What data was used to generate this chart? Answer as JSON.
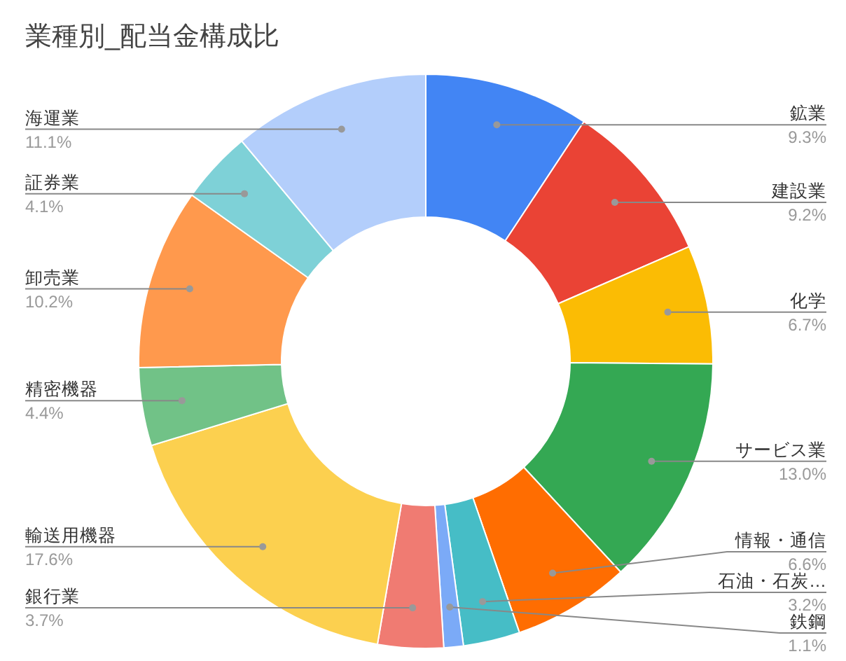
{
  "chart_data": {
    "type": "donut",
    "title": "業種別_配当金構成比",
    "categories": [
      "鉱業",
      "建設業",
      "化学",
      "サービス業",
      "情報・通信",
      "石油・石炭…",
      "鉄鋼",
      "銀行業",
      "輸送用機器",
      "精密機器",
      "卸売業",
      "証券業",
      "海運業"
    ],
    "values": [
      9.3,
      9.2,
      6.7,
      13.0,
      6.6,
      3.2,
      1.1,
      3.7,
      17.6,
      4.4,
      10.2,
      4.1,
      11.1
    ],
    "value_labels": [
      "9.3%",
      "9.2%",
      "6.7%",
      "13.0%",
      "6.6%",
      "3.2%",
      "1.1%",
      "3.7%",
      "17.6%",
      "4.4%",
      "10.2%",
      "4.1%",
      "11.1%"
    ],
    "colors": [
      "#4285f4",
      "#ea4335",
      "#fbbc04",
      "#34a853",
      "#ff6d01",
      "#46bdc6",
      "#7baaf7",
      "#f07b72",
      "#fcd04f",
      "#71c287",
      "#ff994d",
      "#7ed1d7",
      "#b3cefb"
    ]
  }
}
